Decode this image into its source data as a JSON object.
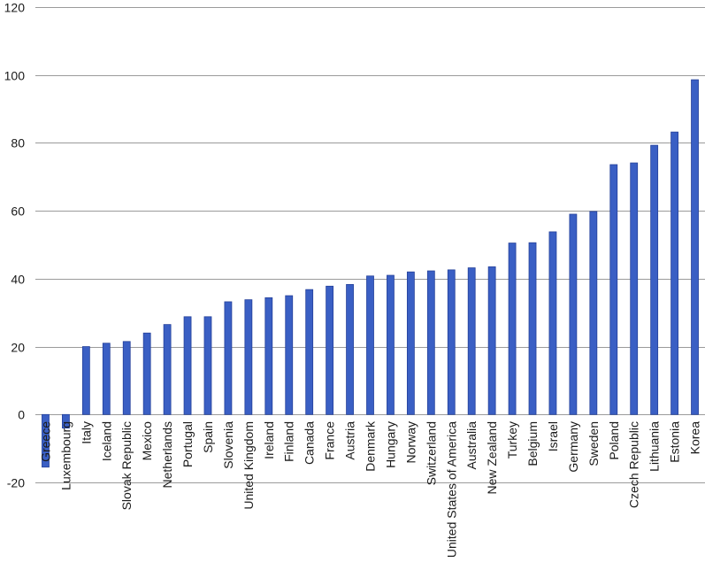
{
  "chart_data": {
    "type": "bar",
    "title": "",
    "xlabel": "",
    "ylabel": "",
    "ylim": [
      -20,
      120
    ],
    "yticks": [
      -20,
      0,
      20,
      40,
      60,
      80,
      100,
      120
    ],
    "grid": true,
    "legend": "none",
    "bar_color": "#3a5fc4",
    "bar_edge_color": "#24409a",
    "grid_color": "#9b9b9b",
    "categories": [
      "Greece",
      "Luxembourg",
      "Italy",
      "Iceland",
      "Slovak Republic",
      "Mexico",
      "Netherlands",
      "Portugal",
      "Spain",
      "Slovenia",
      "United Kingdom",
      "Ireland",
      "Finland",
      "Canada",
      "France",
      "Austria",
      "Denmark",
      "Hungary",
      "Norway",
      "Switzerland",
      "United States of America",
      "Australia",
      "New Zealand",
      "Turkey",
      "Belgium",
      "Israel",
      "Germany",
      "Sweden",
      "Poland",
      "Czech Republic",
      "Lithuania",
      "Estonia",
      "Korea"
    ],
    "values": [
      -15.5,
      -4.0,
      20.0,
      21.0,
      21.5,
      24.0,
      26.5,
      28.8,
      28.8,
      33.2,
      33.8,
      34.4,
      35.0,
      36.8,
      37.8,
      38.3,
      40.8,
      41.0,
      42.0,
      42.3,
      42.6,
      43.2,
      43.5,
      50.5,
      50.6,
      53.8,
      59.0,
      59.8,
      73.6,
      74.1,
      79.3,
      83.2,
      98.6
    ]
  }
}
